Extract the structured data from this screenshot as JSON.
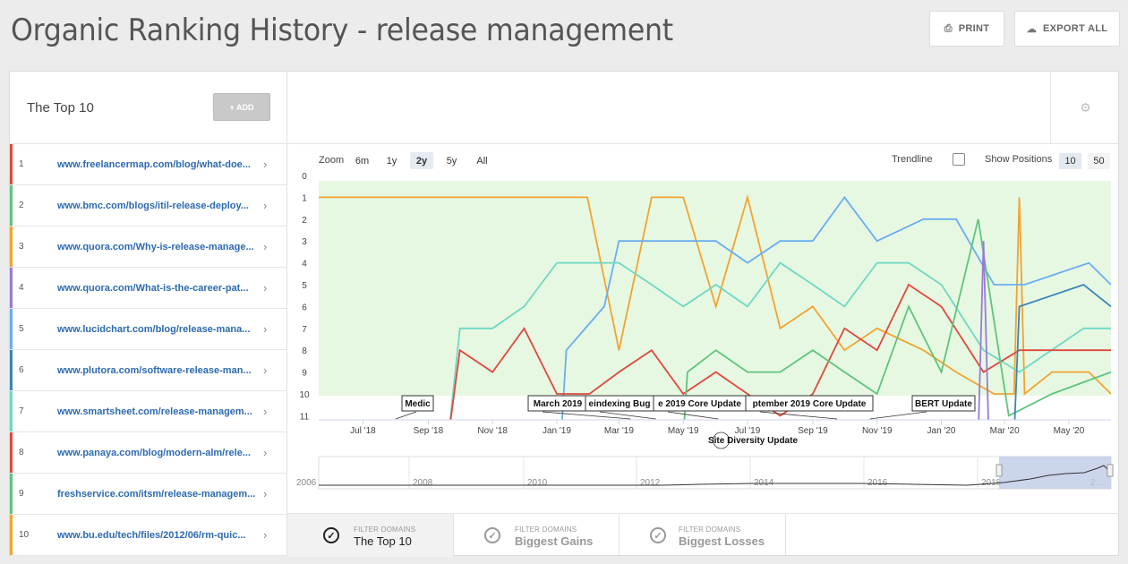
{
  "page": {
    "title": "Organic Ranking History - release management"
  },
  "header": {
    "print_label": "PRINT",
    "export_label": "EXPORT ALL"
  },
  "left_panel": {
    "title": "The Top 10",
    "add_label": "+ ADD",
    "items": [
      {
        "rank": "1",
        "url": "www.freelancermap.com/blog/what-doe...",
        "color": "#e0483e"
      },
      {
        "rank": "2",
        "url": "www.bmc.com/blogs/itil-release-deploy...",
        "color": "#5fc47f"
      },
      {
        "rank": "3",
        "url": "www.quora.com/Why-is-release-manage...",
        "color": "#f3a32f"
      },
      {
        "rank": "4",
        "url": "www.quora.com/What-is-the-career-pat...",
        "color": "#9b7ad6"
      },
      {
        "rank": "5",
        "url": "www.lucidchart.com/blog/release-mana...",
        "color": "#6aaef0"
      },
      {
        "rank": "6",
        "url": "www.plutora.com/software-release-man...",
        "color": "#3a86b8"
      },
      {
        "rank": "7",
        "url": "www.smartsheet.com/release-managem...",
        "color": "#6fd8c4"
      },
      {
        "rank": "8",
        "url": "www.panaya.com/blog/modern-alm/rele...",
        "color": "#e0483e"
      },
      {
        "rank": "9",
        "url": "freshservice.com/itsm/release-managem...",
        "color": "#5fc47f"
      },
      {
        "rank": "10",
        "url": "www.bu.edu/tech/files/2012/06/rm-quic...",
        "color": "#f3a32f"
      }
    ]
  },
  "toolbar": {
    "zoom_label": "Zoom",
    "zoom_options": [
      "6m",
      "1y",
      "2y",
      "5y",
      "All"
    ],
    "zoom_active": "2y",
    "trendline_label": "Trendline",
    "positions_label": "Show Positions",
    "positions_options": [
      "10",
      "50"
    ],
    "positions_active": "10"
  },
  "chart_data": {
    "type": "line",
    "y_ticks": [
      "0",
      "1",
      "2",
      "3",
      "4",
      "5",
      "6",
      "7",
      "8",
      "9",
      "10",
      "11"
    ],
    "ylim": [
      0,
      11
    ],
    "y_inverted": true,
    "x_ticks": [
      "Jul '18",
      "Sep '18",
      "Nov '18",
      "Jan '19",
      "Mar '19",
      "May '19",
      "Jul '19",
      "Sep '19",
      "Nov '19",
      "Jan '20",
      "Mar '20",
      "May '20"
    ],
    "xlim": [
      "2018-05-20",
      "2020-06-10"
    ],
    "grid": false,
    "highlight_band": [
      0,
      10
    ],
    "annotations": [
      {
        "label": "Medic",
        "date": "2018-08-01"
      },
      {
        "label": "March 2019",
        "date": "2019-03-12"
      },
      {
        "label": "eindexing Bug",
        "date": "2019-04-05"
      },
      {
        "label": "e 2019 Core Update",
        "date": "2019-06-03"
      },
      {
        "label": "ptember 2019 Core Update",
        "date": "2019-09-24"
      },
      {
        "label": "BERT Update",
        "date": "2019-10-25"
      },
      {
        "label": "Site Diversity Update",
        "date": "2019-06-06"
      }
    ],
    "series": [
      {
        "color": "#f3a32f",
        "points": [
          [
            "2018-05-20",
            1
          ],
          [
            "2019-01-15",
            1
          ],
          [
            "2019-01-30",
            1
          ],
          [
            "2019-03-01",
            8
          ],
          [
            "2019-04-01",
            1
          ],
          [
            "2019-05-01",
            1
          ],
          [
            "2019-06-01",
            6
          ],
          [
            "2019-07-01",
            1
          ],
          [
            "2019-08-01",
            7
          ],
          [
            "2019-09-01",
            6
          ],
          [
            "2019-10-01",
            8
          ],
          [
            "2019-11-01",
            7
          ],
          [
            "2019-12-15",
            8
          ],
          [
            "2020-01-15",
            9
          ],
          [
            "2020-02-20",
            10
          ],
          [
            "2020-03-10",
            10
          ],
          [
            "2020-03-15",
            1
          ],
          [
            "2020-03-20",
            10
          ],
          [
            "2020-04-15",
            9
          ],
          [
            "2020-05-20",
            9
          ],
          [
            "2020-06-10",
            10
          ]
        ]
      },
      {
        "color": "#6aaef0",
        "points": [
          [
            "2019-01-05",
            12
          ],
          [
            "2019-01-10",
            8
          ],
          [
            "2019-02-15",
            6
          ],
          [
            "2019-03-01",
            3
          ],
          [
            "2019-04-01",
            3
          ],
          [
            "2019-05-01",
            3
          ],
          [
            "2019-06-01",
            3
          ],
          [
            "2019-07-01",
            4
          ],
          [
            "2019-08-01",
            3
          ],
          [
            "2019-09-01",
            3
          ],
          [
            "2019-10-01",
            1
          ],
          [
            "2019-11-01",
            3
          ],
          [
            "2019-12-15",
            2
          ],
          [
            "2020-01-15",
            2
          ],
          [
            "2020-02-20",
            5
          ],
          [
            "2020-03-20",
            5
          ],
          [
            "2020-05-20",
            4
          ],
          [
            "2020-06-10",
            5
          ]
        ]
      },
      {
        "color": "#6fd8c4",
        "points": [
          [
            "2018-09-20",
            12
          ],
          [
            "2018-10-01",
            7
          ],
          [
            "2018-11-01",
            7
          ],
          [
            "2018-12-01",
            6
          ],
          [
            "2019-01-01",
            4
          ],
          [
            "2019-02-01",
            4
          ],
          [
            "2019-03-01",
            4
          ],
          [
            "2019-04-01",
            5
          ],
          [
            "2019-05-01",
            6
          ],
          [
            "2019-06-01",
            5
          ],
          [
            "2019-07-01",
            6
          ],
          [
            "2019-08-01",
            4
          ],
          [
            "2019-09-01",
            5
          ],
          [
            "2019-10-01",
            6
          ],
          [
            "2019-11-01",
            4
          ],
          [
            "2019-12-01",
            4
          ],
          [
            "2020-01-01",
            5
          ],
          [
            "2020-02-10",
            8
          ],
          [
            "2020-03-15",
            9
          ],
          [
            "2020-05-15",
            7
          ],
          [
            "2020-06-10",
            7
          ]
        ]
      },
      {
        "color": "#e0483e",
        "points": [
          [
            "2018-09-20",
            12
          ],
          [
            "2018-10-01",
            8
          ],
          [
            "2018-11-01",
            9
          ],
          [
            "2018-12-01",
            7
          ],
          [
            "2019-01-01",
            10
          ],
          [
            "2019-02-01",
            10
          ],
          [
            "2019-03-01",
            9
          ],
          [
            "2019-04-01",
            8
          ],
          [
            "2019-05-01",
            10
          ],
          [
            "2019-06-01",
            9
          ],
          [
            "2019-07-01",
            10
          ],
          [
            "2019-08-01",
            11
          ],
          [
            "2019-09-01",
            10
          ],
          [
            "2019-10-01",
            7
          ],
          [
            "2019-11-01",
            8
          ],
          [
            "2019-12-01",
            5
          ],
          [
            "2020-01-01",
            6
          ],
          [
            "2020-02-10",
            9
          ],
          [
            "2020-03-15",
            8
          ],
          [
            "2020-05-15",
            8
          ],
          [
            "2020-06-10",
            8
          ]
        ]
      },
      {
        "color": "#5fc47f",
        "points": [
          [
            "2019-05-01",
            12
          ],
          [
            "2019-05-05",
            9
          ],
          [
            "2019-06-01",
            8
          ],
          [
            "2019-07-01",
            9
          ],
          [
            "2019-08-01",
            9
          ],
          [
            "2019-09-01",
            8
          ],
          [
            "2019-10-01",
            9
          ],
          [
            "2019-11-01",
            10
          ],
          [
            "2019-12-01",
            6
          ],
          [
            "2020-01-01",
            9
          ],
          [
            "2020-02-05",
            2
          ],
          [
            "2020-03-05",
            11
          ],
          [
            "2020-04-15",
            10
          ],
          [
            "2020-06-10",
            9
          ]
        ]
      },
      {
        "color": "#9b7ad6",
        "points": [
          [
            "2020-02-05",
            12
          ],
          [
            "2020-02-10",
            3
          ],
          [
            "2020-02-15",
            12
          ]
        ]
      },
      {
        "color": "#3a86b8",
        "points": [
          [
            "2020-03-10",
            12
          ],
          [
            "2020-03-15",
            6
          ],
          [
            "2020-05-15",
            5
          ],
          [
            "2020-06-10",
            6
          ]
        ]
      }
    ]
  },
  "navigator": {
    "year_labels": [
      "2006",
      "2008",
      "2010",
      "2012",
      "2014",
      "2016",
      "2018",
      "2..."
    ]
  },
  "filters": [
    {
      "small": "FILTER DOMAINS",
      "big": "The Top 10"
    },
    {
      "small": "FILTER DOMAINS",
      "big": "Biggest Gains"
    },
    {
      "small": "FILTER DOMAINS",
      "big": "Biggest Losses"
    }
  ],
  "icons": {
    "print": "printer-icon",
    "export": "cloud-download-icon",
    "settings": "gear-icon",
    "chevron": "chevron-right-icon",
    "check": "check-circle-icon"
  }
}
